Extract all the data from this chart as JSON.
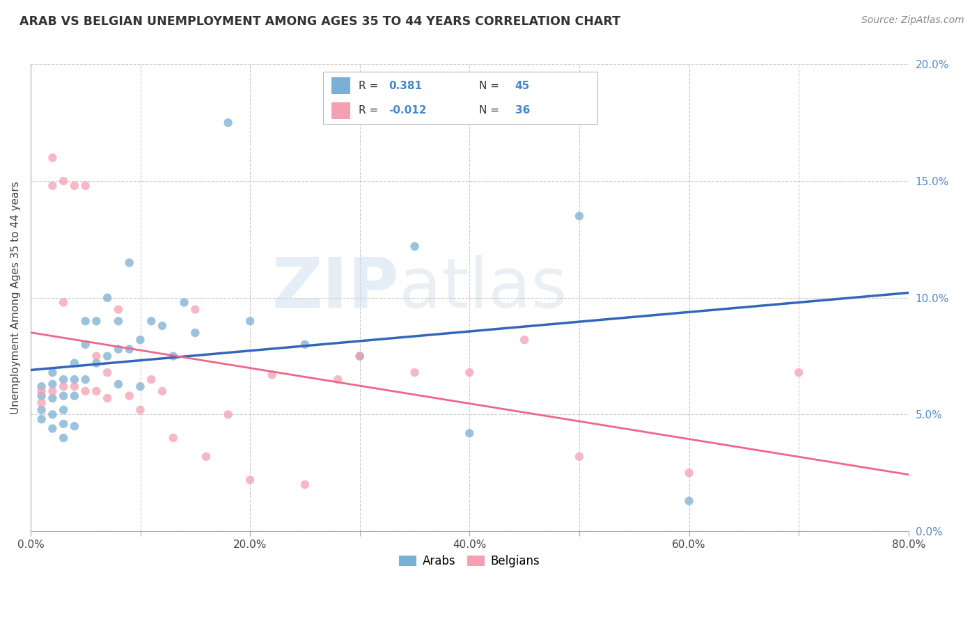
{
  "title": "ARAB VS BELGIAN UNEMPLOYMENT AMONG AGES 35 TO 44 YEARS CORRELATION CHART",
  "source": "Source: ZipAtlas.com",
  "ylabel": "Unemployment Among Ages 35 to 44 years",
  "xlim": [
    0.0,
    0.8
  ],
  "ylim": [
    0.0,
    0.2
  ],
  "xticks": [
    0.0,
    0.1,
    0.2,
    0.3,
    0.4,
    0.5,
    0.6,
    0.7,
    0.8
  ],
  "xticklabels": [
    "0.0%",
    "",
    "20.0%",
    "",
    "40.0%",
    "",
    "60.0%",
    "",
    "80.0%"
  ],
  "yticks": [
    0.0,
    0.05,
    0.1,
    0.15,
    0.2
  ],
  "yticklabels": [
    "0.0%",
    "5.0%",
    "10.0%",
    "15.0%",
    "20.0%"
  ],
  "arab_R": 0.381,
  "arab_N": 45,
  "belgian_R": -0.012,
  "belgian_N": 36,
  "arab_color": "#7BAFD4",
  "belgian_color": "#F4A0B0",
  "arab_line_color": "#3366BB",
  "belgian_line_color": "#EE6688",
  "arab_x": [
    0.01,
    0.01,
    0.01,
    0.01,
    0.02,
    0.02,
    0.02,
    0.02,
    0.02,
    0.03,
    0.03,
    0.03,
    0.03,
    0.03,
    0.04,
    0.04,
    0.04,
    0.04,
    0.05,
    0.05,
    0.05,
    0.06,
    0.06,
    0.07,
    0.07,
    0.08,
    0.08,
    0.08,
    0.09,
    0.09,
    0.1,
    0.1,
    0.11,
    0.12,
    0.13,
    0.14,
    0.15,
    0.18,
    0.2,
    0.25,
    0.3,
    0.35,
    0.4,
    0.5,
    0.6
  ],
  "arab_y": [
    0.062,
    0.058,
    0.052,
    0.048,
    0.068,
    0.063,
    0.057,
    0.05,
    0.044,
    0.065,
    0.058,
    0.052,
    0.046,
    0.04,
    0.072,
    0.065,
    0.058,
    0.045,
    0.09,
    0.08,
    0.065,
    0.09,
    0.072,
    0.1,
    0.075,
    0.09,
    0.078,
    0.063,
    0.115,
    0.078,
    0.082,
    0.062,
    0.09,
    0.088,
    0.075,
    0.098,
    0.085,
    0.175,
    0.09,
    0.08,
    0.075,
    0.122,
    0.042,
    0.135,
    0.013
  ],
  "belgian_x": [
    0.01,
    0.01,
    0.02,
    0.02,
    0.02,
    0.03,
    0.03,
    0.03,
    0.04,
    0.04,
    0.05,
    0.05,
    0.06,
    0.06,
    0.07,
    0.07,
    0.08,
    0.09,
    0.1,
    0.11,
    0.12,
    0.13,
    0.15,
    0.16,
    0.18,
    0.2,
    0.22,
    0.25,
    0.28,
    0.3,
    0.35,
    0.4,
    0.45,
    0.5,
    0.6,
    0.7
  ],
  "belgian_y": [
    0.06,
    0.055,
    0.16,
    0.148,
    0.06,
    0.15,
    0.098,
    0.062,
    0.148,
    0.062,
    0.148,
    0.06,
    0.075,
    0.06,
    0.068,
    0.057,
    0.095,
    0.058,
    0.052,
    0.065,
    0.06,
    0.04,
    0.095,
    0.032,
    0.05,
    0.022,
    0.067,
    0.02,
    0.065,
    0.075,
    0.068,
    0.068,
    0.082,
    0.032,
    0.025,
    0.068
  ]
}
